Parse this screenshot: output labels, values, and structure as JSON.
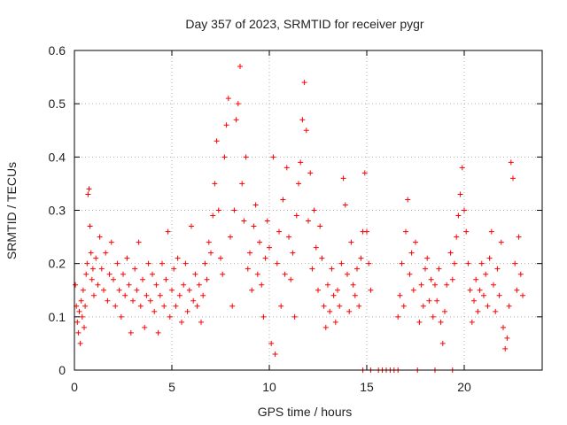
{
  "chart_data": {
    "type": "scatter",
    "title": "Day 357 of 2023, SRMTID for receiver pygr",
    "xlabel": "GPS time / hours",
    "ylabel": "SRMTID / TECUs",
    "xlim": [
      0,
      24
    ],
    "ylim": [
      0,
      0.6
    ],
    "xticks": [
      0,
      5,
      10,
      15,
      20
    ],
    "xtick_labels": [
      "0",
      "5",
      "10",
      "15",
      "20"
    ],
    "yticks": [
      0,
      0.1,
      0.2,
      0.3,
      0.4,
      0.5,
      0.6
    ],
    "ytick_labels": [
      "0",
      "0.1",
      "0.2",
      "0.3",
      "0.4",
      "0.5",
      "0.6"
    ],
    "grid": true,
    "marker": "+",
    "color": "#ff0000",
    "series": [
      {
        "name": "SRMTID",
        "points": [
          [
            0.05,
            0.16
          ],
          [
            0.1,
            0.12
          ],
          [
            0.15,
            0.09
          ],
          [
            0.2,
            0.07
          ],
          [
            0.25,
            0.11
          ],
          [
            0.3,
            0.05
          ],
          [
            0.35,
            0.13
          ],
          [
            0.4,
            0.1
          ],
          [
            0.45,
            0.15
          ],
          [
            0.5,
            0.08
          ],
          [
            0.55,
            0.12
          ],
          [
            0.6,
            0.18
          ],
          [
            0.65,
            0.2
          ],
          [
            0.7,
            0.33
          ],
          [
            0.75,
            0.34
          ],
          [
            0.8,
            0.27
          ],
          [
            0.85,
            0.22
          ],
          [
            0.9,
            0.17
          ],
          [
            0.95,
            0.19
          ],
          [
            1.0,
            0.14
          ],
          [
            1.1,
            0.21
          ],
          [
            1.2,
            0.16
          ],
          [
            1.3,
            0.25
          ],
          [
            1.4,
            0.19
          ],
          [
            1.5,
            0.15
          ],
          [
            1.6,
            0.22
          ],
          [
            1.7,
            0.13
          ],
          [
            1.8,
            0.18
          ],
          [
            1.9,
            0.24
          ],
          [
            2.0,
            0.17
          ],
          [
            2.1,
            0.12
          ],
          [
            2.2,
            0.2
          ],
          [
            2.3,
            0.15
          ],
          [
            2.4,
            0.1
          ],
          [
            2.5,
            0.18
          ],
          [
            2.6,
            0.14
          ],
          [
            2.7,
            0.21
          ],
          [
            2.8,
            0.16
          ],
          [
            2.9,
            0.07
          ],
          [
            3.0,
            0.13
          ],
          [
            3.1,
            0.19
          ],
          [
            3.2,
            0.15
          ],
          [
            3.3,
            0.24
          ],
          [
            3.4,
            0.12
          ],
          [
            3.5,
            0.17
          ],
          [
            3.6,
            0.08
          ],
          [
            3.7,
            0.14
          ],
          [
            3.8,
            0.2
          ],
          [
            3.9,
            0.13
          ],
          [
            4.0,
            0.18
          ],
          [
            4.1,
            0.11
          ],
          [
            4.2,
            0.16
          ],
          [
            4.3,
            0.07
          ],
          [
            4.4,
            0.14
          ],
          [
            4.5,
            0.2
          ],
          [
            4.6,
            0.12
          ],
          [
            4.7,
            0.17
          ],
          [
            4.8,
            0.26
          ],
          [
            4.9,
            0.1
          ],
          [
            5.0,
            0.15
          ],
          [
            5.1,
            0.19
          ],
          [
            5.2,
            0.12
          ],
          [
            5.3,
            0.21
          ],
          [
            5.4,
            0.14
          ],
          [
            5.5,
            0.09
          ],
          [
            5.6,
            0.16
          ],
          [
            5.7,
            0.2
          ],
          [
            5.8,
            0.11
          ],
          [
            5.9,
            0.15
          ],
          [
            6.0,
            0.27
          ],
          [
            6.1,
            0.13
          ],
          [
            6.2,
            0.18
          ],
          [
            6.3,
            0.12
          ],
          [
            6.4,
            0.16
          ],
          [
            6.5,
            0.09
          ],
          [
            6.6,
            0.14
          ],
          [
            6.7,
            0.2
          ],
          [
            6.8,
            0.17
          ],
          [
            6.9,
            0.24
          ],
          [
            7.0,
            0.22
          ],
          [
            7.1,
            0.29
          ],
          [
            7.2,
            0.35
          ],
          [
            7.3,
            0.43
          ],
          [
            7.4,
            0.3
          ],
          [
            7.5,
            0.21
          ],
          [
            7.6,
            0.18
          ],
          [
            7.7,
            0.4
          ],
          [
            7.8,
            0.46
          ],
          [
            7.9,
            0.51
          ],
          [
            8.0,
            0.25
          ],
          [
            8.1,
            0.12
          ],
          [
            8.2,
            0.3
          ],
          [
            8.3,
            0.47
          ],
          [
            8.4,
            0.5
          ],
          [
            8.5,
            0.57
          ],
          [
            8.6,
            0.35
          ],
          [
            8.7,
            0.28
          ],
          [
            8.8,
            0.4
          ],
          [
            8.9,
            0.19
          ],
          [
            9.0,
            0.22
          ],
          [
            9.1,
            0.15
          ],
          [
            9.2,
            0.27
          ],
          [
            9.3,
            0.31
          ],
          [
            9.4,
            0.18
          ],
          [
            9.5,
            0.24
          ],
          [
            9.6,
            0.16
          ],
          [
            9.7,
            0.1
          ],
          [
            9.8,
            0.21
          ],
          [
            9.9,
            0.28
          ],
          [
            10.0,
            0.23
          ],
          [
            10.1,
            0.05
          ],
          [
            10.2,
            0.4
          ],
          [
            10.3,
            0.03
          ],
          [
            10.4,
            0.2
          ],
          [
            10.5,
            0.26
          ],
          [
            10.6,
            0.12
          ],
          [
            10.7,
            0.32
          ],
          [
            10.8,
            0.18
          ],
          [
            10.9,
            0.38
          ],
          [
            11.0,
            0.25
          ],
          [
            11.1,
            0.17
          ],
          [
            11.2,
            0.22
          ],
          [
            11.3,
            0.1
          ],
          [
            11.4,
            0.29
          ],
          [
            11.5,
            0.35
          ],
          [
            11.6,
            0.39
          ],
          [
            11.7,
            0.47
          ],
          [
            11.8,
            0.54
          ],
          [
            11.9,
            0.45
          ],
          [
            12.0,
            0.28
          ],
          [
            12.1,
            0.37
          ],
          [
            12.2,
            0.19
          ],
          [
            12.3,
            0.3
          ],
          [
            12.4,
            0.23
          ],
          [
            12.5,
            0.15
          ],
          [
            12.6,
            0.27
          ],
          [
            12.7,
            0.21
          ],
          [
            12.8,
            0.12
          ],
          [
            12.9,
            0.08
          ],
          [
            13.0,
            0.16
          ],
          [
            13.1,
            0.11
          ],
          [
            13.2,
            0.19
          ],
          [
            13.3,
            0.14
          ],
          [
            13.4,
            0.09
          ],
          [
            13.5,
            0.15
          ],
          [
            13.6,
            0.12
          ],
          [
            13.7,
            0.2
          ],
          [
            13.8,
            0.36
          ],
          [
            13.9,
            0.31
          ],
          [
            14.0,
            0.18
          ],
          [
            14.1,
            0.11
          ],
          [
            14.2,
            0.24
          ],
          [
            14.3,
            0.16
          ],
          [
            14.4,
            0.14
          ],
          [
            14.5,
            0.19
          ],
          [
            14.6,
            0.12
          ],
          [
            14.7,
            0.21
          ],
          [
            14.8,
            0.26
          ],
          [
            14.9,
            0.37
          ],
          [
            15.0,
            0.26
          ],
          [
            15.1,
            0.2
          ],
          [
            15.2,
            0.15
          ],
          [
            16.6,
            0.1
          ],
          [
            16.7,
            0.14
          ],
          [
            16.8,
            0.2
          ],
          [
            16.9,
            0.12
          ],
          [
            17.0,
            0.26
          ],
          [
            17.1,
            0.32
          ],
          [
            17.2,
            0.18
          ],
          [
            17.3,
            0.22
          ],
          [
            17.4,
            0.15
          ],
          [
            17.5,
            0.24
          ],
          [
            17.7,
            0.09
          ],
          [
            17.8,
            0.16
          ],
          [
            17.9,
            0.12
          ],
          [
            18.0,
            0.19
          ],
          [
            18.1,
            0.21
          ],
          [
            18.2,
            0.13
          ],
          [
            18.3,
            0.17
          ],
          [
            18.4,
            0.1
          ],
          [
            18.5,
            0.16
          ],
          [
            18.6,
            0.13
          ],
          [
            18.7,
            0.19
          ],
          [
            18.8,
            0.09
          ],
          [
            18.9,
            0.05
          ],
          [
            19.0,
            0.11
          ],
          [
            19.1,
            0.16
          ],
          [
            19.3,
            0.22
          ],
          [
            19.4,
            0.17
          ],
          [
            19.5,
            0.2
          ],
          [
            19.6,
            0.25
          ],
          [
            19.7,
            0.29
          ],
          [
            19.8,
            0.33
          ],
          [
            19.9,
            0.38
          ],
          [
            20.0,
            0.3
          ],
          [
            20.1,
            0.26
          ],
          [
            20.2,
            0.2
          ],
          [
            20.3,
            0.15
          ],
          [
            20.4,
            0.09
          ],
          [
            20.5,
            0.13
          ],
          [
            20.6,
            0.17
          ],
          [
            20.7,
            0.11
          ],
          [
            20.8,
            0.15
          ],
          [
            20.9,
            0.2
          ],
          [
            21.0,
            0.14
          ],
          [
            21.1,
            0.18
          ],
          [
            21.2,
            0.12
          ],
          [
            21.3,
            0.21
          ],
          [
            21.4,
            0.26
          ],
          [
            21.5,
            0.16
          ],
          [
            21.6,
            0.11
          ],
          [
            21.7,
            0.19
          ],
          [
            21.8,
            0.14
          ],
          [
            21.9,
            0.24
          ],
          [
            22.0,
            0.08
          ],
          [
            22.1,
            0.04
          ],
          [
            22.2,
            0.06
          ],
          [
            22.3,
            0.12
          ],
          [
            22.4,
            0.39
          ],
          [
            22.5,
            0.36
          ],
          [
            22.6,
            0.2
          ],
          [
            22.7,
            0.15
          ],
          [
            22.8,
            0.25
          ],
          [
            22.9,
            0.18
          ],
          [
            23.0,
            0.14
          ],
          [
            14.8,
            0
          ],
          [
            15.2,
            0
          ],
          [
            15.6,
            0
          ],
          [
            15.8,
            0
          ],
          [
            16.0,
            0
          ],
          [
            16.2,
            0
          ],
          [
            16.4,
            0
          ],
          [
            16.6,
            0
          ],
          [
            17.6,
            0
          ],
          [
            18.5,
            0
          ],
          [
            19.4,
            0
          ]
        ]
      }
    ]
  }
}
